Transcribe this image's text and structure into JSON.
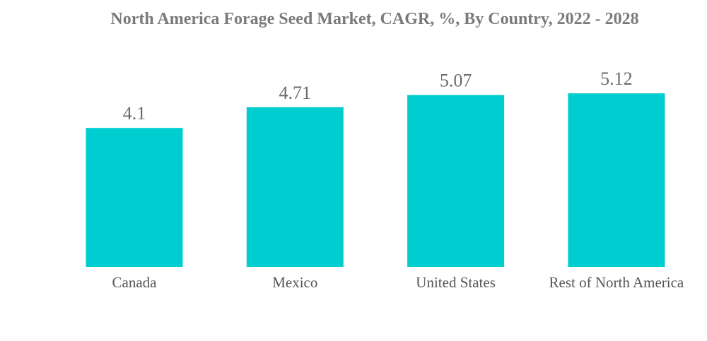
{
  "chart_data": {
    "type": "bar",
    "title": "North America Forage Seed Market, CAGR, %, By Country, 2022 - 2028",
    "categories": [
      "Canada",
      "Mexico",
      "United States",
      "Rest of North America"
    ],
    "values": [
      4.1,
      4.71,
      5.07,
      5.12
    ],
    "value_labels": [
      "4.1",
      "4.71",
      "5.07",
      "5.12"
    ],
    "ylim": [
      0,
      5.12
    ],
    "grid": false,
    "legend": "none",
    "bar_color": "#00CDD0"
  }
}
